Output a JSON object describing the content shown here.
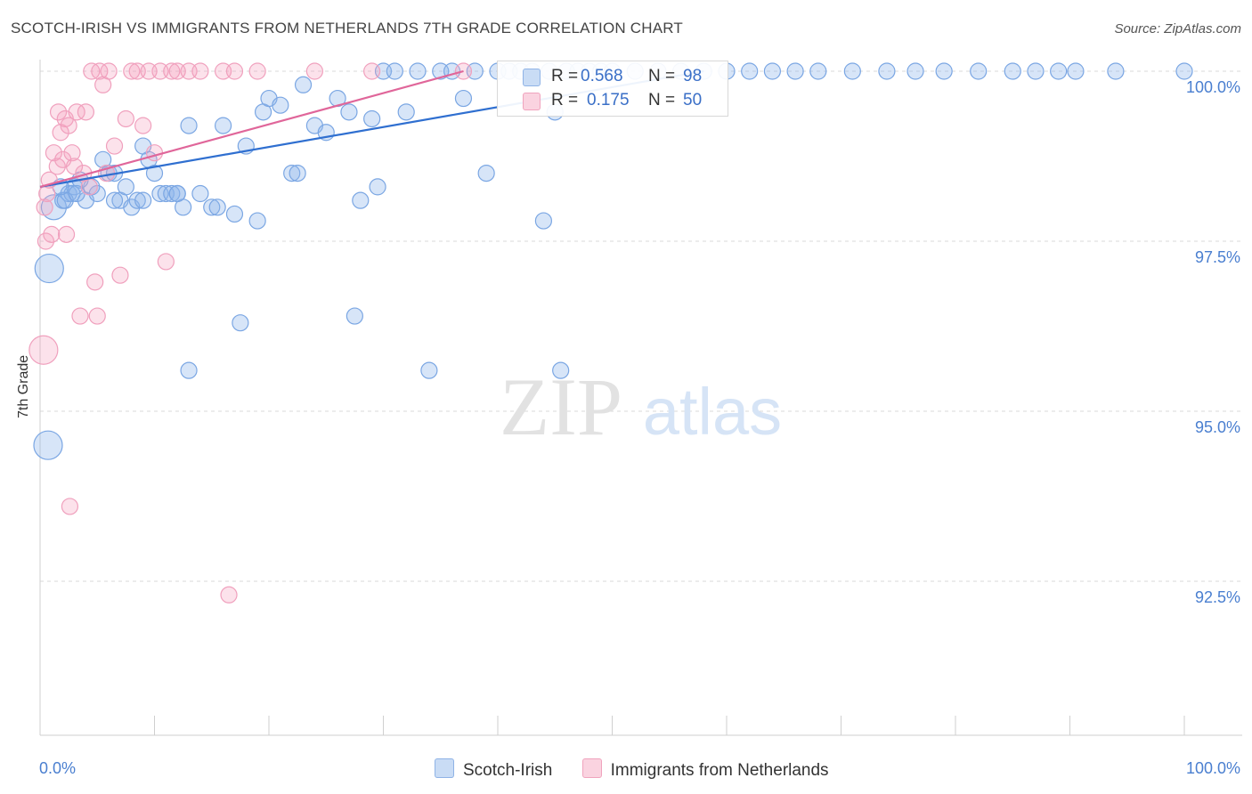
{
  "header": {
    "title": "SCOTCH-IRISH VS IMMIGRANTS FROM NETHERLANDS 7TH GRADE CORRELATION CHART",
    "source": "Source: ZipAtlas.com"
  },
  "watermark": {
    "zip": "ZIP",
    "atlas": "atlas"
  },
  "legend": {
    "rows": [
      {
        "r_label": "R =",
        "r_value": "0.568",
        "n_label": "N =",
        "n_value": "98"
      },
      {
        "r_label": "R =",
        "r_value": "0.175",
        "n_label": "N =",
        "n_value": "50"
      }
    ]
  },
  "bottom_legend": {
    "series_a": "Scotch-Irish",
    "series_b": "Immigrants from Netherlands"
  },
  "colors": {
    "blue": "#6e9fe0",
    "blue_line": "#2f6fd0",
    "pink": "#f4a0bb",
    "pink_line": "#e0669a",
    "tick_text": "#4a7fd0"
  },
  "chart_data": {
    "type": "scatter",
    "title": "SCOTCH-IRISH VS IMMIGRANTS FROM NETHERLANDS 7TH GRADE CORRELATION CHART",
    "xlabel": "",
    "ylabel": "7th Grade",
    "xlim": [
      0,
      100
    ],
    "ylim": [
      90.2,
      100.5
    ],
    "x_ticks": [
      "0.0%",
      "100.0%"
    ],
    "y_ticks": [
      {
        "value": 100.0,
        "label": "100.0%"
      },
      {
        "value": 97.5,
        "label": "97.5%"
      },
      {
        "value": 95.0,
        "label": "95.0%"
      },
      {
        "value": 92.5,
        "label": "92.5%"
      }
    ],
    "legend_placement": "top-center",
    "series": [
      {
        "name": "Scotch-Irish",
        "color": "#6e9fe0",
        "trend": [
          [
            0,
            98.3
          ],
          [
            58,
            100.0
          ]
        ],
        "points": [
          [
            1.2,
            98.0,
            14
          ],
          [
            0.8,
            97.1,
            16
          ],
          [
            0.7,
            94.5,
            16
          ],
          [
            2.0,
            98.1,
            9
          ],
          [
            2.5,
            98.2,
            9
          ],
          [
            3.0,
            98.3,
            9
          ],
          [
            4.0,
            98.1,
            9
          ],
          [
            5.5,
            98.7,
            9
          ],
          [
            6.0,
            98.5,
            9
          ],
          [
            6.5,
            98.5,
            9
          ],
          [
            7.0,
            98.1,
            9
          ],
          [
            7.5,
            98.3,
            9
          ],
          [
            8.0,
            98.0,
            9
          ],
          [
            8.5,
            98.1,
            9
          ],
          [
            9.0,
            98.9,
            9
          ],
          [
            9.5,
            98.7,
            9
          ],
          [
            10.0,
            98.5,
            9
          ],
          [
            10.5,
            98.2,
            9
          ],
          [
            11.0,
            98.2,
            9
          ],
          [
            11.5,
            98.2,
            9
          ],
          [
            12.0,
            98.2,
            9
          ],
          [
            12.5,
            98.0,
            9
          ],
          [
            13.0,
            99.2,
            9
          ],
          [
            14.0,
            98.2,
            9
          ],
          [
            15.0,
            98.0,
            9
          ],
          [
            15.5,
            98.0,
            9
          ],
          [
            16.0,
            99.2,
            9
          ],
          [
            17.0,
            97.9,
            9
          ],
          [
            17.5,
            96.3,
            9
          ],
          [
            18.0,
            98.9,
            9
          ],
          [
            19.0,
            97.8,
            9
          ],
          [
            19.5,
            99.4,
            9
          ],
          [
            20.0,
            99.6,
            9
          ],
          [
            21.0,
            99.5,
            9
          ],
          [
            22.0,
            98.5,
            9
          ],
          [
            22.5,
            98.5,
            9
          ],
          [
            23.0,
            99.8,
            9
          ],
          [
            24.0,
            99.2,
            9
          ],
          [
            25.0,
            99.1,
            9
          ],
          [
            26.0,
            99.6,
            9
          ],
          [
            27.0,
            99.4,
            9
          ],
          [
            27.5,
            96.4,
            9
          ],
          [
            28.0,
            98.1,
            9
          ],
          [
            29.0,
            99.3,
            9
          ],
          [
            29.5,
            98.3,
            9
          ],
          [
            30.0,
            100.0,
            9
          ],
          [
            31.0,
            100.0,
            9
          ],
          [
            32.0,
            99.4,
            9
          ],
          [
            33.0,
            100.0,
            9
          ],
          [
            34.0,
            95.6,
            9
          ],
          [
            35.0,
            100.0,
            9
          ],
          [
            36.0,
            100.0,
            9
          ],
          [
            37.0,
            99.6,
            9
          ],
          [
            38.0,
            100.0,
            9
          ],
          [
            39.0,
            98.5,
            9
          ],
          [
            40.0,
            100.0,
            9
          ],
          [
            41.0,
            100.0,
            9
          ],
          [
            42.0,
            100.0,
            9
          ],
          [
            43.0,
            100.0,
            9
          ],
          [
            44.0,
            97.8,
            9
          ],
          [
            44.5,
            100.0,
            9
          ],
          [
            45.0,
            99.4,
            9
          ],
          [
            45.5,
            95.6,
            9
          ],
          [
            46.0,
            100.0,
            9
          ],
          [
            47.0,
            100.0,
            9
          ],
          [
            48.0,
            100.0,
            9
          ],
          [
            49.0,
            100.0,
            9
          ],
          [
            50.0,
            100.0,
            9
          ],
          [
            52.0,
            100.0,
            9
          ],
          [
            54.0,
            100.0,
            9
          ],
          [
            56.0,
            100.0,
            9
          ],
          [
            58.0,
            100.0,
            9
          ],
          [
            60.0,
            100.0,
            9
          ],
          [
            62.0,
            100.0,
            9
          ],
          [
            64.0,
            100.0,
            9
          ],
          [
            66.0,
            100.0,
            9
          ],
          [
            68.0,
            100.0,
            9
          ],
          [
            71.0,
            100.0,
            9
          ],
          [
            74.0,
            100.0,
            9
          ],
          [
            76.5,
            100.0,
            9
          ],
          [
            79.0,
            100.0,
            9
          ],
          [
            82.0,
            100.0,
            9
          ],
          [
            85.0,
            100.0,
            9
          ],
          [
            87.0,
            100.0,
            9
          ],
          [
            89.0,
            100.0,
            9
          ],
          [
            90.5,
            100.0,
            9
          ],
          [
            94.0,
            100.0,
            9
          ],
          [
            100.0,
            100.0,
            9
          ],
          [
            13.0,
            95.6,
            9
          ],
          [
            12.0,
            98.2,
            9
          ],
          [
            9.0,
            98.1,
            9
          ],
          [
            6.5,
            98.1,
            9
          ],
          [
            5.0,
            98.2,
            9
          ],
          [
            4.5,
            98.3,
            9
          ],
          [
            3.5,
            98.4,
            9
          ],
          [
            2.8,
            98.2,
            9
          ],
          [
            2.2,
            98.1,
            9
          ],
          [
            1.8,
            98.3,
            9
          ],
          [
            3.2,
            98.2,
            9
          ]
        ]
      },
      {
        "name": "Immigrants from Netherlands",
        "color": "#f4a0bb",
        "trend": [
          [
            0,
            98.3
          ],
          [
            37,
            100.0
          ]
        ],
        "points": [
          [
            0.3,
            95.9,
            16
          ],
          [
            0.4,
            98.0,
            9
          ],
          [
            0.5,
            97.5,
            9
          ],
          [
            0.6,
            98.2,
            9
          ],
          [
            0.8,
            98.4,
            9
          ],
          [
            1.0,
            97.6,
            9
          ],
          [
            1.2,
            98.8,
            9
          ],
          [
            1.5,
            98.6,
            9
          ],
          [
            1.6,
            99.4,
            9
          ],
          [
            1.8,
            99.1,
            9
          ],
          [
            2.0,
            98.7,
            9
          ],
          [
            2.2,
            99.3,
            9
          ],
          [
            2.3,
            97.6,
            9
          ],
          [
            2.5,
            99.2,
            9
          ],
          [
            2.6,
            93.6,
            9
          ],
          [
            2.8,
            98.8,
            9
          ],
          [
            3.0,
            98.6,
            9
          ],
          [
            3.2,
            99.4,
            9
          ],
          [
            3.5,
            96.4,
            9
          ],
          [
            3.8,
            98.5,
            9
          ],
          [
            4.0,
            99.4,
            9
          ],
          [
            4.3,
            98.3,
            9
          ],
          [
            4.5,
            100.0,
            9
          ],
          [
            4.8,
            96.9,
            9
          ],
          [
            5.0,
            96.4,
            9
          ],
          [
            5.2,
            100.0,
            9
          ],
          [
            5.5,
            99.8,
            9
          ],
          [
            5.8,
            98.5,
            9
          ],
          [
            6.0,
            100.0,
            9
          ],
          [
            6.5,
            98.9,
            9
          ],
          [
            7.0,
            97.0,
            9
          ],
          [
            7.5,
            99.3,
            9
          ],
          [
            8.0,
            100.0,
            9
          ],
          [
            8.5,
            100.0,
            9
          ],
          [
            9.0,
            99.2,
            9
          ],
          [
            9.5,
            100.0,
            9
          ],
          [
            10.0,
            98.8,
            9
          ],
          [
            10.5,
            100.0,
            9
          ],
          [
            11.0,
            97.2,
            9
          ],
          [
            11.5,
            100.0,
            9
          ],
          [
            12.0,
            100.0,
            9
          ],
          [
            13.0,
            100.0,
            9
          ],
          [
            14.0,
            100.0,
            9
          ],
          [
            16.0,
            100.0,
            9
          ],
          [
            17.0,
            100.0,
            9
          ],
          [
            19.0,
            100.0,
            9
          ],
          [
            16.5,
            92.3,
            9
          ],
          [
            24.0,
            100.0,
            9
          ],
          [
            29.0,
            100.0,
            9
          ],
          [
            37.0,
            100.0,
            9
          ]
        ]
      }
    ]
  }
}
